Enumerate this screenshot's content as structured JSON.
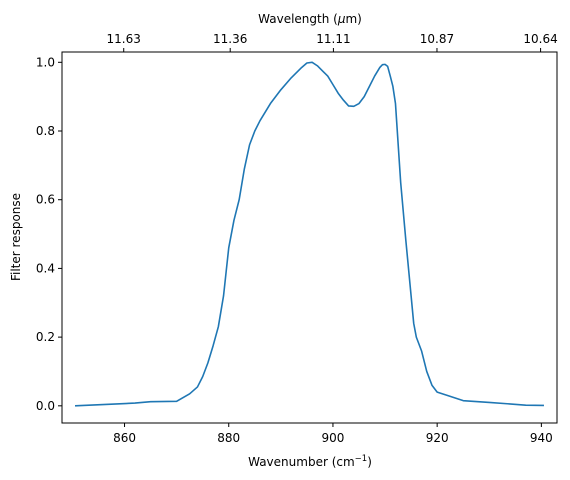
{
  "chart_data": {
    "type": "line",
    "title": "",
    "xlabel": "Wavenumber (cm",
    "xlabel_sup": "−1",
    "xlabel_tail": ")",
    "ylabel": "Filter response",
    "top_xlabel": "Wavelength (",
    "top_xlabel_mu": "μ",
    "top_xlabel_tail": "m)",
    "xlim": [
      848,
      943
    ],
    "ylim": [
      -0.05,
      1.03
    ],
    "x_ticks": [
      860,
      880,
      900,
      920,
      940
    ],
    "x_tick_labels": [
      "860",
      "880",
      "900",
      "920",
      "940"
    ],
    "y_ticks": [
      0.0,
      0.2,
      0.4,
      0.6,
      0.8,
      1.0
    ],
    "y_tick_labels": [
      "0.0",
      "0.2",
      "0.4",
      "0.6",
      "0.8",
      "1.0"
    ],
    "top_ticks": [
      11.63,
      11.36,
      11.11,
      10.87,
      10.64
    ],
    "top_tick_labels": [
      "11.63",
      "11.36",
      "11.11",
      "10.87",
      "10.64"
    ],
    "grid": false,
    "series_color": "#1f77b4",
    "series": [
      {
        "name": "",
        "x": [
          850.5,
          858.0,
          862.0,
          865.0,
          870.0,
          871.0,
          872.5,
          874.0,
          875.0,
          876.0,
          877.0,
          878.0,
          879.0,
          879.5,
          880.0,
          880.5,
          881.0,
          882.0,
          883.0,
          884.0,
          885.0,
          886.0,
          888.0,
          890.0,
          892.0,
          894.0,
          895.0,
          896.0,
          897.0,
          898.0,
          899.0,
          900.0,
          901.0,
          902.0,
          903.0,
          904.0,
          905.0,
          906.0,
          907.0,
          908.0,
          909.0,
          909.5,
          910.0,
          910.5,
          911.0,
          911.5,
          912.0,
          913.0,
          914.0,
          915.0,
          915.5,
          916.0,
          917.0,
          918.0,
          919.0,
          920.0,
          922.0,
          925.0,
          930.0,
          937.0,
          940.5
        ],
        "y": [
          0.0,
          0.005,
          0.008,
          0.012,
          0.013,
          0.022,
          0.035,
          0.055,
          0.085,
          0.125,
          0.175,
          0.23,
          0.32,
          0.39,
          0.46,
          0.5,
          0.54,
          0.6,
          0.69,
          0.76,
          0.8,
          0.83,
          0.88,
          0.92,
          0.955,
          0.985,
          0.998,
          1.0,
          0.99,
          0.975,
          0.96,
          0.935,
          0.91,
          0.89,
          0.873,
          0.872,
          0.88,
          0.9,
          0.93,
          0.96,
          0.985,
          0.993,
          0.994,
          0.988,
          0.96,
          0.93,
          0.88,
          0.65,
          0.48,
          0.32,
          0.24,
          0.2,
          0.16,
          0.1,
          0.06,
          0.04,
          0.03,
          0.015,
          0.01,
          0.002,
          0.001
        ]
      }
    ]
  }
}
